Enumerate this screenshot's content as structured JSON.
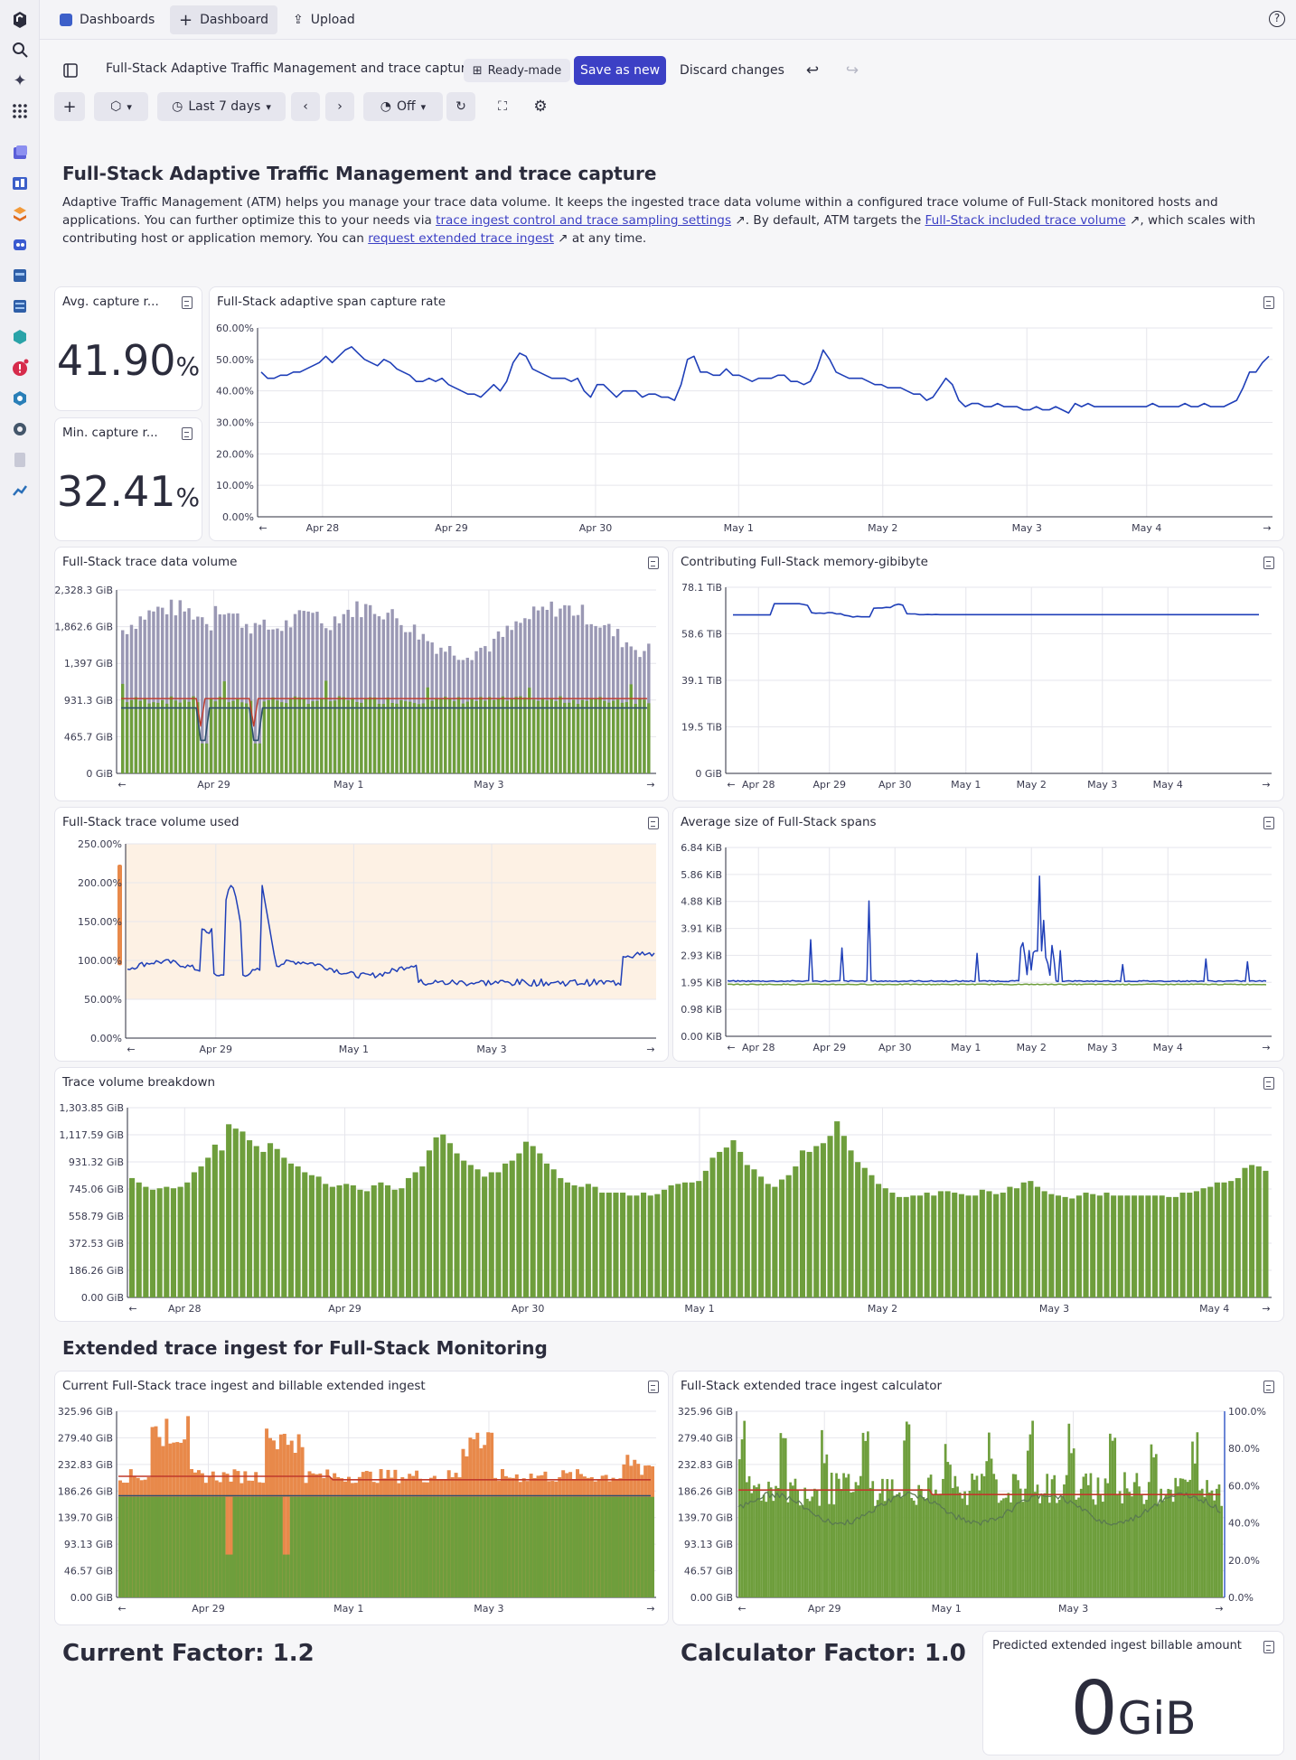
{
  "app": {
    "tabs": {
      "dashboards": "Dashboards",
      "dashboard": "Dashboard",
      "upload": "Upload"
    }
  },
  "toolbar": {
    "title": "Full-Stack Adaptive Traffic Management and trace capture",
    "ready_made": "Ready-made",
    "save_as_new": "Save as new",
    "discard": "Discard changes",
    "timeframe": "Last 7 days",
    "refresh": "Off"
  },
  "intro": {
    "heading": "Full-Stack Adaptive Traffic Management and trace capture",
    "p1": "Adaptive Traffic Management (ATM) helps you manage your trace data volume. It keeps the ingested trace data volume within a configured trace volume of Full-Stack monitored hosts and applications. You can further optimize this to your needs via ",
    "link1": "trace ingest control and trace sampling settings",
    "p2": ". By default, ATM targets the ",
    "link2": "Full-Stack included trace volume",
    "p3": ", which scales with contributing host or application memory. You can ",
    "link3": "request extended trace ingest",
    "p4": " at any time."
  },
  "tiles": {
    "avg": {
      "title": "Avg. capture r...",
      "value": "41.90",
      "unit": "%"
    },
    "min": {
      "title": "Min. capture r...",
      "value": "32.41",
      "unit": "%"
    },
    "span_rate": {
      "title": "Full-Stack adaptive span capture rate"
    },
    "trace_volume": {
      "title": "Full-Stack trace data volume"
    },
    "memory": {
      "title": "Contributing Full-Stack memory-gibibyte"
    },
    "volume_used": {
      "title": "Full-Stack trace volume used"
    },
    "span_size": {
      "title": "Average size of Full-Stack spans"
    },
    "breakdown": {
      "title": "Trace volume breakdown"
    },
    "current_ingest": {
      "title": "Current Full-Stack trace ingest and billable extended ingest"
    },
    "calculator": {
      "title": "Full-Stack extended trace ingest calculator"
    },
    "predicted": {
      "title": "Predicted extended ingest billable amount",
      "value": "0",
      "unit": "GiB"
    }
  },
  "section2": {
    "heading": "Extended trace ingest for Full-Stack Monitoring"
  },
  "factors": {
    "current": "Current Factor: 1.2",
    "calculator": "Calculator Factor: 1.0"
  },
  "colors": {
    "blue": "#1f3fb8",
    "green": "#6e9e3c",
    "grey_bar": "#9a98b4",
    "red": "#c0392b",
    "orange": "#e8894a",
    "navy": "#2b2c3c"
  },
  "chart_data": [
    {
      "id": "span_rate",
      "type": "line",
      "yticks": [
        "0.00%",
        "10.00%",
        "20.00%",
        "30.00%",
        "40.00%",
        "50.00%",
        "60.00%"
      ],
      "ylim": [
        0,
        60
      ],
      "xticks": [
        "Apr 28",
        "Apr 29",
        "Apr 30",
        "May 1",
        "May 2",
        "May 3",
        "May 4"
      ],
      "series": [
        {
          "values": [
            46,
            44,
            44,
            45,
            45,
            46,
            46,
            47,
            48,
            49,
            51,
            49,
            51,
            53,
            54,
            52,
            50,
            49,
            48,
            50,
            49,
            47,
            46,
            45,
            43,
            43,
            44,
            43,
            44,
            42,
            41,
            40,
            39,
            39,
            38,
            40,
            42,
            40,
            43,
            49,
            52,
            51,
            47,
            46,
            45,
            44,
            44,
            44,
            43,
            44,
            40,
            38,
            42,
            42,
            40,
            38,
            40,
            40,
            40,
            38,
            39,
            39,
            38,
            38,
            37,
            42,
            50,
            51,
            46,
            46,
            45,
            45,
            47,
            45,
            45,
            44,
            43,
            44,
            44,
            44,
            45,
            45,
            43,
            43,
            42,
            43,
            47,
            53,
            50,
            46,
            45,
            44,
            44,
            44,
            43,
            42,
            42,
            41,
            41,
            41,
            40,
            39,
            39,
            37,
            38,
            41,
            44,
            42,
            37,
            35,
            36,
            36,
            35,
            35,
            36,
            35,
            35,
            35,
            34,
            34,
            35,
            34,
            34,
            35,
            34,
            33,
            36,
            35,
            36,
            35,
            35,
            35,
            35,
            35,
            35,
            35,
            35,
            35,
            36,
            35,
            35,
            35,
            35,
            36,
            35,
            35,
            36,
            35,
            35,
            35,
            36,
            37,
            41,
            46,
            46,
            49,
            51
          ]
        }
      ]
    },
    {
      "id": "trace_volume",
      "type": "bar",
      "yticks": [
        "0 GiB",
        "465.7 GiB",
        "931.3 GiB",
        "1,397 GiB",
        "1,862.6 GiB",
        "2,328.3 GiB"
      ],
      "ylim": [
        0,
        2328.3
      ],
      "xticks": [
        "Apr 29",
        "May 1",
        "May 3"
      ]
    },
    {
      "id": "memory",
      "type": "line",
      "yticks": [
        "0 GiB",
        "19.5 TiB",
        "39.1 TiB",
        "58.6 TiB",
        "78.1 TiB"
      ],
      "ylim": [
        0,
        78.1
      ],
      "xticks": [
        "Apr 28",
        "Apr 29",
        "Apr 30",
        "May 1",
        "May 2",
        "May 3",
        "May 4"
      ],
      "series": [
        {
          "values": [
            66.5,
            66.5,
            66.5,
            66.5,
            66.5,
            66.5,
            66.5,
            66.5,
            66.5,
            66.5,
            71.2,
            71.2,
            71.2,
            71.2,
            71.2,
            71.2,
            71.2,
            70.9,
            70.5,
            67.4,
            67.2,
            67.3,
            67.1,
            67.5,
            67.4,
            66.9,
            67.0,
            66.3,
            66.1,
            65.6,
            65.9,
            65.7,
            65.7,
            65.7,
            69.3,
            69.4,
            69.4,
            69.7,
            69.6,
            70.6,
            71.0,
            70.6,
            67.0,
            66.9,
            66.9,
            66.6,
            66.6,
            66.7,
            66.6,
            66.7,
            66.6,
            66.6,
            66.6,
            66.6,
            66.6,
            66.6,
            66.6,
            66.6,
            66.6,
            66.6,
            66.6,
            66.6,
            66.6,
            66.6,
            66.6,
            66.6,
            66.6,
            66.6,
            66.6,
            66.6,
            66.6,
            66.6,
            66.6,
            66.6,
            66.6,
            66.6,
            66.6,
            66.6,
            66.6,
            66.6,
            66.6,
            66.6,
            66.6,
            66.6,
            66.6,
            66.6,
            66.6,
            66.6,
            66.6,
            66.6,
            66.6,
            66.6,
            66.6,
            66.6,
            66.6,
            66.6,
            66.6,
            66.6,
            66.6,
            66.6,
            66.6,
            66.6,
            66.6,
            66.6,
            66.6,
            66.6,
            66.6,
            66.6,
            66.6,
            66.6,
            66.6,
            66.6,
            66.6,
            66.6,
            66.6,
            66.6,
            66.6,
            66.6,
            66.6,
            66.6,
            66.6,
            66.6,
            66.6,
            66.6,
            66.6,
            66.6,
            66.6,
            66.6
          ]
        }
      ]
    },
    {
      "id": "volume_used",
      "type": "line",
      "yticks": [
        "0.00%",
        "50.00%",
        "100.00%",
        "150.00%",
        "200.00%",
        "250.00%"
      ],
      "ylim": [
        0,
        280
      ],
      "xticks": [
        "Apr 29",
        "May 1",
        "May 3"
      ]
    },
    {
      "id": "span_size",
      "type": "line",
      "yticks": [
        "0.00 KiB",
        "0.98 KiB",
        "1.95 KiB",
        "2.93 KiB",
        "3.91 KiB",
        "4.88 KiB",
        "5.86 KiB",
        "6.84 KiB"
      ],
      "ylim": [
        0,
        6.84
      ],
      "xticks": [
        "Apr 28",
        "Apr 29",
        "Apr 30",
        "May 1",
        "May 2",
        "May 3",
        "May 4"
      ]
    },
    {
      "id": "breakdown",
      "type": "bar",
      "yticks": [
        "0.00 GiB",
        "186.26 GiB",
        "372.53 GiB",
        "558.79 GiB",
        "745.06 GiB",
        "931.32 GiB",
        "1,117.59 GiB",
        "1,303.85 GiB"
      ],
      "ylim": [
        0,
        1303.85
      ],
      "xticks": [
        "Apr 28",
        "Apr 29",
        "Apr 30",
        "May 1",
        "May 2",
        "May 3",
        "May 4"
      ],
      "series": [
        {
          "values": [
            820,
            790,
            760,
            740,
            750,
            760,
            750,
            760,
            790,
            860,
            900,
            960,
            1050,
            1010,
            1190,
            1160,
            1140,
            1080,
            1040,
            1000,
            1060,
            1020,
            960,
            920,
            900,
            860,
            840,
            830,
            780,
            760,
            770,
            780,
            770,
            740,
            730,
            770,
            790,
            770,
            740,
            750,
            820,
            860,
            900,
            1010,
            1100,
            1120,
            1060,
            990,
            940,
            910,
            880,
            830,
            860,
            860,
            920,
            940,
            990,
            1070,
            1040,
            990,
            920,
            880,
            820,
            790,
            770,
            760,
            780,
            760,
            720,
            720,
            720,
            720,
            700,
            700,
            720,
            700,
            710,
            740,
            770,
            780,
            790,
            790,
            800,
            870,
            960,
            1000,
            1030,
            1080,
            1000,
            910,
            880,
            830,
            780,
            760,
            810,
            840,
            900,
            1010,
            1000,
            1040,
            1060,
            1110,
            1210,
            1110,
            1010,
            930,
            890,
            840,
            780,
            750,
            720,
            690,
            690,
            700,
            700,
            720,
            700,
            730,
            730,
            720,
            710,
            700,
            700,
            740,
            730,
            710,
            720,
            760,
            750,
            790,
            800,
            760,
            730,
            710,
            700,
            690,
            680,
            700,
            720,
            710,
            700,
            720,
            700,
            700,
            700,
            700,
            700,
            700,
            700,
            700,
            690,
            690,
            720,
            720,
            730,
            750,
            760,
            790,
            790,
            800,
            820,
            890,
            910,
            900,
            870
          ]
        }
      ]
    },
    {
      "id": "current_ingest",
      "type": "bar",
      "yticks": [
        "0.00 GiB",
        "46.57 GiB",
        "93.13 GiB",
        "139.70 GiB",
        "186.26 GiB",
        "232.83 GiB",
        "279.40 GiB",
        "325.96 GiB"
      ],
      "ylim": [
        0,
        325.96
      ],
      "xticks": [
        "Apr 29",
        "May 1",
        "May 3"
      ]
    },
    {
      "id": "calculator",
      "type": "bar",
      "yticks": [
        "0.00 GiB",
        "46.57 GiB",
        "93.13 GiB",
        "139.70 GiB",
        "186.26 GiB",
        "232.83 GiB",
        "279.40 GiB",
        "325.96 GiB"
      ],
      "y2ticks": [
        "0.0%",
        "20.0%",
        "40.0%",
        "60.0%",
        "80.0%",
        "100.0%"
      ],
      "ylim": [
        0,
        325.96
      ],
      "xticks": [
        "Apr 29",
        "May 1",
        "May 3"
      ]
    }
  ]
}
